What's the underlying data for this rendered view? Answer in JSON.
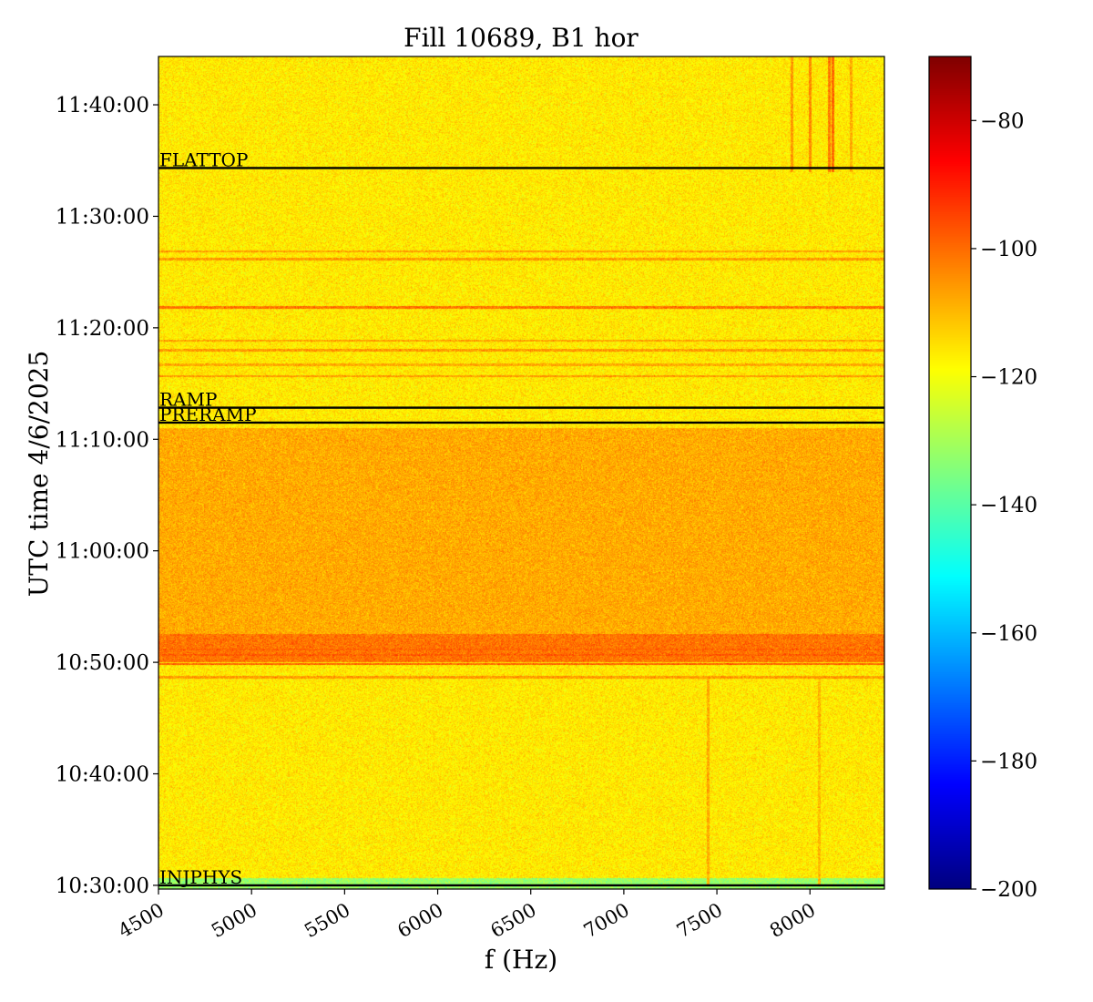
{
  "chart_data": {
    "type": "heatmap",
    "title": "Fill 10689, B1 hor",
    "xlabel": "f (Hz)",
    "ylabel": "UTC time 4/6/2025",
    "xlim": [
      4500,
      8400
    ],
    "x_ticks": [
      4500,
      5000,
      5500,
      6000,
      6500,
      7000,
      7500,
      8000
    ],
    "x_tick_labels": [
      "4500",
      "5000",
      "5500",
      "6000",
      "6500",
      "7000",
      "7500",
      "8000"
    ],
    "y_time_range": [
      "10:29:40",
      "11:44:20"
    ],
    "y_ticks": [
      "10:30:00",
      "10:40:00",
      "10:50:00",
      "11:00:00",
      "11:10:00",
      "11:20:00",
      "11:30:00",
      "11:40:00"
    ],
    "colormap": "jet",
    "colorbar": {
      "vmin": -200,
      "vmax": -70,
      "ticks": [
        -80,
        -100,
        -120,
        -140,
        -160,
        -180,
        -200
      ],
      "tick_labels": [
        "−80",
        "−100",
        "−120",
        "−140",
        "−160",
        "−180",
        "−200"
      ]
    },
    "baseline_levels_db": [
      {
        "from": "10:29:40",
        "to": "10:30:40",
        "level": -132
      },
      {
        "from": "10:30:40",
        "to": "10:50:00",
        "level": -116
      },
      {
        "from": "10:50:00",
        "to": "10:52:30",
        "level": -101
      },
      {
        "from": "10:52:30",
        "to": "11:11:00",
        "level": -108
      },
      {
        "from": "11:11:00",
        "to": "11:34:00",
        "level": -116
      },
      {
        "from": "11:34:00",
        "to": "11:44:20",
        "level": -116
      }
    ],
    "horizontal_lines_db": [
      {
        "time": "10:48:40",
        "level": -106
      },
      {
        "time": "10:49:50",
        "level": -99
      },
      {
        "time": "10:50:40",
        "level": -98
      },
      {
        "time": "10:51:10",
        "level": -99
      },
      {
        "time": "11:15:40",
        "level": -106
      },
      {
        "time": "11:16:40",
        "level": -108
      },
      {
        "time": "11:18:00",
        "level": -106
      },
      {
        "time": "11:18:50",
        "level": -107
      },
      {
        "time": "11:21:50",
        "level": -101
      },
      {
        "time": "11:26:10",
        "level": -106
      },
      {
        "time": "11:26:50",
        "level": -107
      }
    ],
    "vertical_lines_db": [
      {
        "f": 7450,
        "from": "10:30:00",
        "to": "10:48:30",
        "level": -108
      },
      {
        "f": 8050,
        "from": "10:30:00",
        "to": "10:48:30",
        "level": -110
      },
      {
        "f": 8000,
        "from": "11:34:00",
        "to": "11:44:20",
        "level": -104
      },
      {
        "f": 8100,
        "from": "11:34:00",
        "to": "11:44:20",
        "level": -102
      },
      {
        "f": 8120,
        "from": "11:34:00",
        "to": "11:44:20",
        "level": -100
      },
      {
        "f": 7900,
        "from": "11:34:00",
        "to": "11:44:20",
        "level": -106
      },
      {
        "f": 8220,
        "from": "11:34:00",
        "to": "11:44:20",
        "level": -108
      }
    ],
    "annotations": [
      {
        "label": "FLATTOP",
        "time": "11:34:20"
      },
      {
        "label": "RAMP",
        "time": "11:12:50"
      },
      {
        "label": "PRERAMP",
        "time": "11:11:30"
      },
      {
        "label": "INJPHYS",
        "time": "10:30:00"
      }
    ]
  }
}
